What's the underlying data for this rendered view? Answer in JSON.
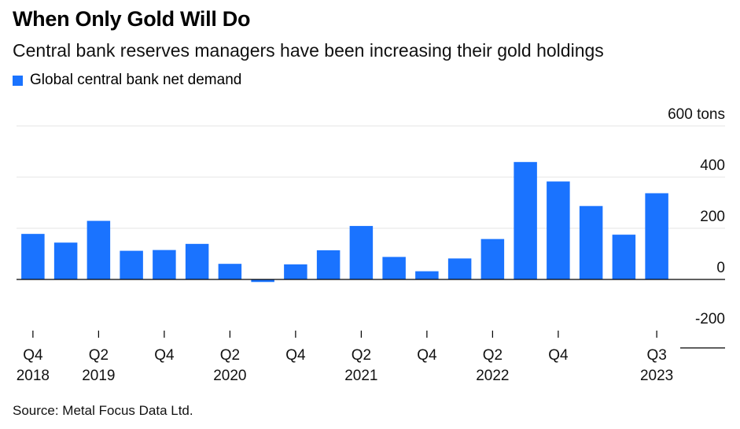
{
  "header": {
    "title": "When Only Gold Will Do",
    "subtitle": "Central bank reserves managers have been increasing their gold holdings"
  },
  "legend": {
    "label": "Global central bank net demand",
    "color": "#1a73ff"
  },
  "footer": {
    "source": "Source: Metal Focus Data Ltd."
  },
  "chart_data": {
    "type": "bar",
    "series": [
      {
        "name": "Global central bank net demand",
        "color": "#1a73ff",
        "values": [
          178,
          144,
          229,
          112,
          115,
          139,
          61,
          -10,
          59,
          114,
          209,
          88,
          32,
          82,
          158,
          459,
          383,
          287,
          175,
          337
        ]
      }
    ],
    "categories": [
      "Q4 2018",
      "Q1 2019",
      "Q2 2019",
      "Q3 2019",
      "Q4 2019",
      "Q1 2020",
      "Q2 2020",
      "Q3 2020",
      "Q4 2020",
      "Q1 2021",
      "Q2 2021",
      "Q3 2021",
      "Q4 2021",
      "Q1 2022",
      "Q2 2022",
      "Q3 2022",
      "Q4 2022",
      "Q1 2023",
      "Q2 2023",
      "Q3 2023"
    ],
    "x_tick_labels": [
      {
        "index": 0,
        "line1": "Q4",
        "line2": "2018"
      },
      {
        "index": 2,
        "line1": "Q2",
        "line2": "2019"
      },
      {
        "index": 4,
        "line1": "Q4",
        "line2": ""
      },
      {
        "index": 6,
        "line1": "Q2",
        "line2": "2020"
      },
      {
        "index": 8,
        "line1": "Q4",
        "line2": ""
      },
      {
        "index": 10,
        "line1": "Q2",
        "line2": "2021"
      },
      {
        "index": 12,
        "line1": "Q4",
        "line2": ""
      },
      {
        "index": 14,
        "line1": "Q2",
        "line2": "2022"
      },
      {
        "index": 16,
        "line1": "Q4",
        "line2": ""
      },
      {
        "index": 19,
        "line1": "Q3",
        "line2": "2023"
      }
    ],
    "y_ticks": [
      {
        "value": 600,
        "label": "600 tons"
      },
      {
        "value": 400,
        "label": "400"
      },
      {
        "value": 200,
        "label": "200"
      },
      {
        "value": 0,
        "label": "0"
      },
      {
        "value": -200,
        "label": "-200"
      }
    ],
    "ylim": [
      -200,
      600
    ],
    "grid": true,
    "legend_position": "top-left"
  }
}
